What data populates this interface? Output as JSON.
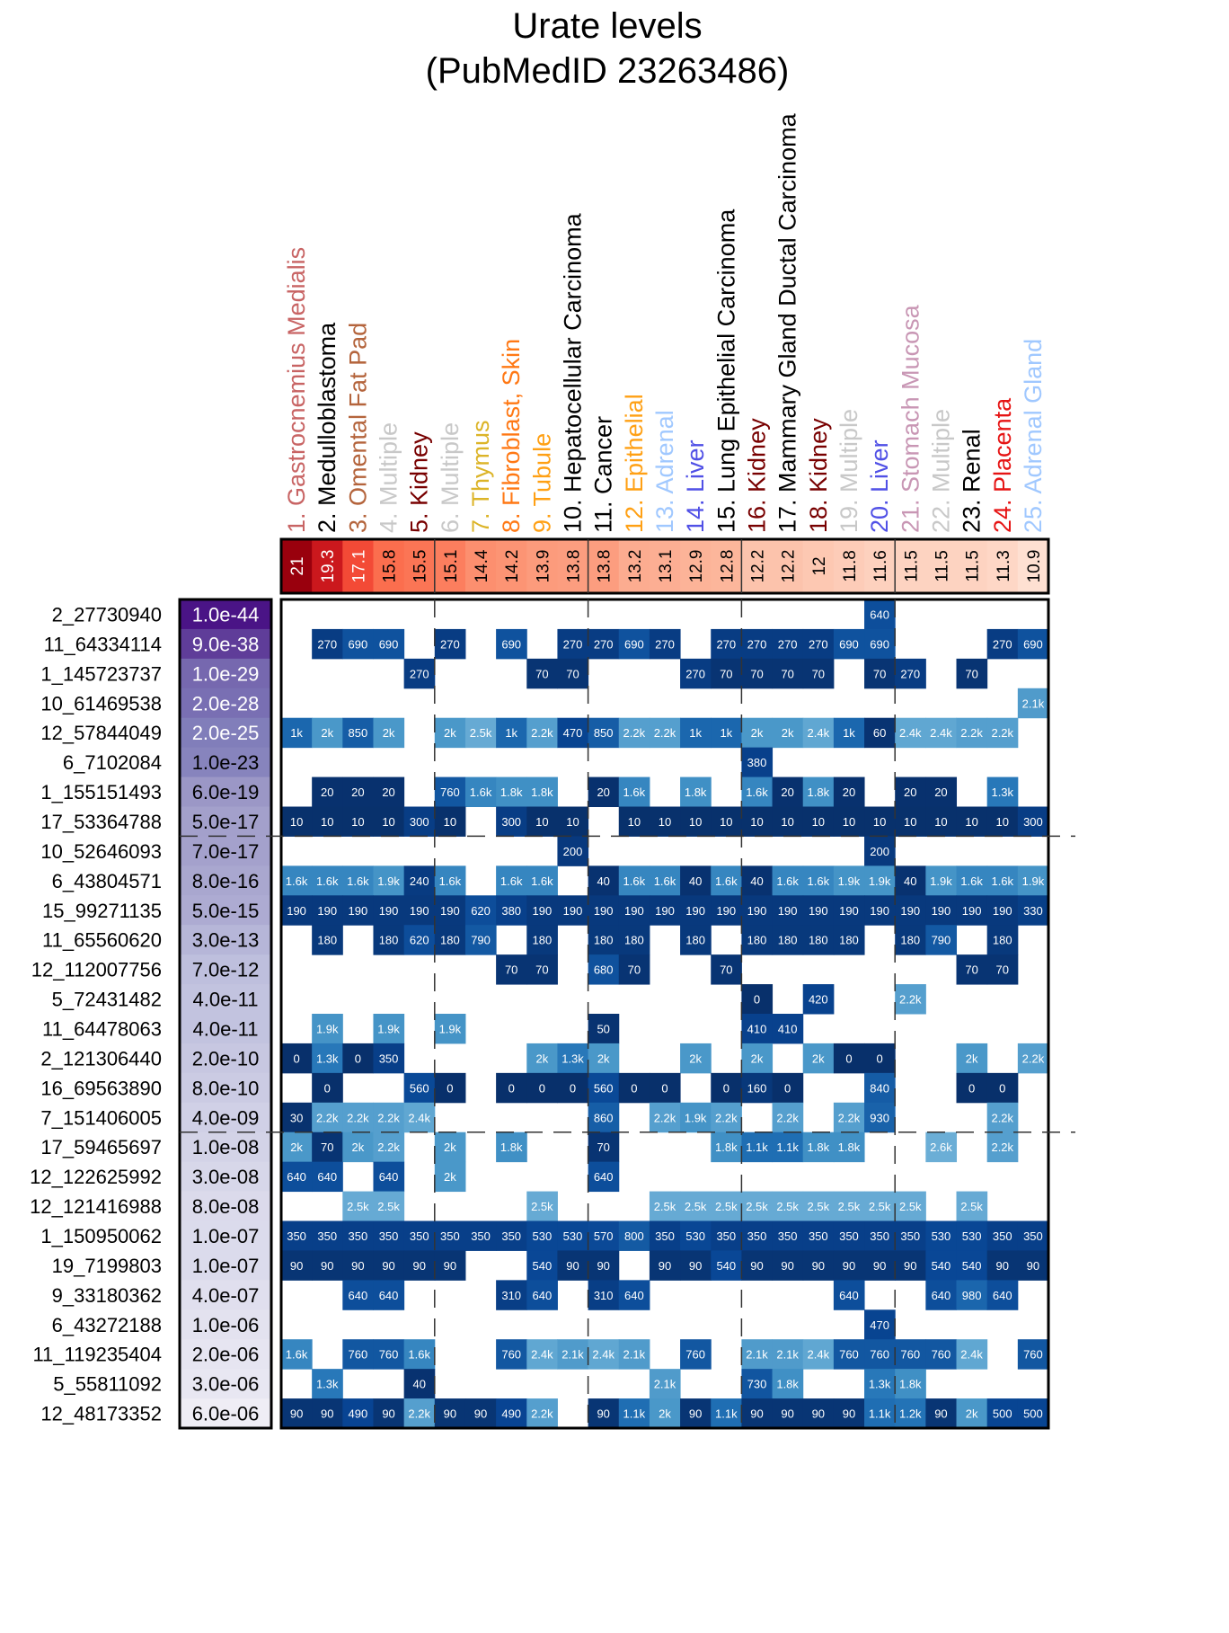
{
  "chart_data": {
    "type": "heatmap",
    "title": "Urate levels",
    "subtitle": "(PubMedID 23263486)",
    "xlabel": "",
    "ylabel": "",
    "columns": [
      {
        "label": "1. Gastrocnemius Medialis",
        "color": "#c86464",
        "score": "21"
      },
      {
        "label": "2. Medulloblastoma",
        "color": "#000000",
        "score": "19.3"
      },
      {
        "label": "3. Omental Fat Pad",
        "color": "#b4643c",
        "score": "17.1"
      },
      {
        "label": "4. Multiple",
        "color": "#c8c8c8",
        "score": "15.8"
      },
      {
        "label": "5. Kidney",
        "color": "#780000",
        "score": "15.5"
      },
      {
        "label": "6. Multiple",
        "color": "#c8c8c8",
        "score": "15.1"
      },
      {
        "label": "7. Thymus",
        "color": "#dcb428",
        "score": "14.4"
      },
      {
        "label": "8. Fibroblast, Skin",
        "color": "#ff7814",
        "score": "14.2"
      },
      {
        "label": "9. Tubule",
        "color": "#ffa014",
        "score": "13.9"
      },
      {
        "label": "10. Hepatocellular Carcinoma",
        "color": "#000000",
        "score": "13.8"
      },
      {
        "label": "11. Cancer",
        "color": "#000000",
        "score": "13.8"
      },
      {
        "label": "12. Epithelial",
        "color": "#ffa014",
        "score": "13.2"
      },
      {
        "label": "13. Adrenal",
        "color": "#a0c8ff",
        "score": "13.1"
      },
      {
        "label": "14. Liver",
        "color": "#5050e6",
        "score": "12.9"
      },
      {
        "label": "15. Lung Epithelial Carcinoma",
        "color": "#000000",
        "score": "12.8"
      },
      {
        "label": "16. Kidney",
        "color": "#780000",
        "score": "12.2"
      },
      {
        "label": "17. Mammary Gland Ductal Carcinoma",
        "color": "#000000",
        "score": "12.2"
      },
      {
        "label": "18. Kidney",
        "color": "#780000",
        "score": "12"
      },
      {
        "label": "19. Multiple",
        "color": "#c8c8c8",
        "score": "11.8"
      },
      {
        "label": "20. Liver",
        "color": "#5050e6",
        "score": "11.6"
      },
      {
        "label": "21. Stomach Mucosa",
        "color": "#c896b4",
        "score": "11.5"
      },
      {
        "label": "22. Multiple",
        "color": "#c8c8c8",
        "score": "11.5"
      },
      {
        "label": "23. Renal",
        "color": "#000000",
        "score": "11.5"
      },
      {
        "label": "24. Placenta",
        "color": "#e61414",
        "score": "11.3"
      },
      {
        "label": "25. Adrenal Gland",
        "color": "#a0c8ff",
        "score": "10.9"
      }
    ],
    "score_range": [
      10.9,
      21
    ],
    "rows": [
      {
        "snp": "2_27730940",
        "pvalue": "1.0e-44"
      },
      {
        "snp": "11_64334114",
        "pvalue": "9.0e-38"
      },
      {
        "snp": "1_145723737",
        "pvalue": "1.0e-29"
      },
      {
        "snp": "10_61469538",
        "pvalue": "2.0e-28"
      },
      {
        "snp": "12_57844049",
        "pvalue": "2.0e-25"
      },
      {
        "snp": "6_7102084",
        "pvalue": "1.0e-23"
      },
      {
        "snp": "1_155151493",
        "pvalue": "6.0e-19"
      },
      {
        "snp": "17_53364788",
        "pvalue": "5.0e-17"
      },
      {
        "snp": "10_52646093",
        "pvalue": "7.0e-17"
      },
      {
        "snp": "6_43804571",
        "pvalue": "8.0e-16"
      },
      {
        "snp": "15_99271135",
        "pvalue": "5.0e-15"
      },
      {
        "snp": "11_65560620",
        "pvalue": "3.0e-13"
      },
      {
        "snp": "12_112007756",
        "pvalue": "7.0e-12"
      },
      {
        "snp": "5_72431482",
        "pvalue": "4.0e-11"
      },
      {
        "snp": "11_64478063",
        "pvalue": "4.0e-11"
      },
      {
        "snp": "2_121306440",
        "pvalue": "2.0e-10"
      },
      {
        "snp": "16_69563890",
        "pvalue": "8.0e-10"
      },
      {
        "snp": "7_151406005",
        "pvalue": "4.0e-09"
      },
      {
        "snp": "17_59465697",
        "pvalue": "1.0e-08"
      },
      {
        "snp": "12_122625992",
        "pvalue": "3.0e-08"
      },
      {
        "snp": "12_121416988",
        "pvalue": "8.0e-08"
      },
      {
        "snp": "1_150950062",
        "pvalue": "1.0e-07"
      },
      {
        "snp": "19_7199803",
        "pvalue": "1.0e-07"
      },
      {
        "snp": "9_33180362",
        "pvalue": "4.0e-07"
      },
      {
        "snp": "6_43272188",
        "pvalue": "1.0e-06"
      },
      {
        "snp": "11_119235404",
        "pvalue": "2.0e-06"
      },
      {
        "snp": "5_55811092",
        "pvalue": "3.0e-06"
      },
      {
        "snp": "12_48173352",
        "pvalue": "6.0e-06"
      }
    ],
    "cells": [
      [
        "",
        "",
        "",
        "",
        "",
        "",
        "",
        "",
        "",
        "",
        "",
        "",
        "",
        "",
        "",
        "",
        "",
        "",
        "",
        "640",
        "",
        "",
        "",
        "",
        ""
      ],
      [
        "",
        "270",
        "690",
        "690",
        "",
        "270",
        "",
        "690",
        "",
        "270",
        "270",
        "690",
        "270",
        "",
        "270",
        "270",
        "270",
        "270",
        "690",
        "690",
        "",
        "",
        "",
        "270",
        "690"
      ],
      [
        "",
        "",
        "",
        "",
        "270",
        "",
        "",
        "",
        "70",
        "70",
        "",
        "",
        "",
        "270",
        "70",
        "70",
        "70",
        "70",
        "",
        "70",
        "270",
        "",
        "70",
        "",
        ""
      ],
      [
        "",
        "",
        "",
        "",
        "",
        "",
        "",
        "",
        "",
        "",
        "",
        "",
        "",
        "",
        "",
        "",
        "",
        "",
        "",
        "",
        "",
        "",
        "",
        "",
        "2.1k"
      ],
      [
        "1k",
        "2k",
        "850",
        "2k",
        "",
        "2k",
        "2.5k",
        "1k",
        "2.2k",
        "470",
        "850",
        "2.2k",
        "2.2k",
        "1k",
        "1k",
        "2k",
        "2k",
        "2.4k",
        "1k",
        "60",
        "2.4k",
        "2.4k",
        "2.2k",
        "2.2k",
        ""
      ],
      [
        "",
        "",
        "",
        "",
        "",
        "",
        "",
        "",
        "",
        "",
        "",
        "",
        "",
        "",
        "",
        "380",
        "",
        "",
        "",
        "",
        "",
        "",
        "",
        "",
        ""
      ],
      [
        "",
        "20",
        "20",
        "20",
        "",
        "760",
        "1.6k",
        "1.8k",
        "1.8k",
        "",
        "20",
        "1.6k",
        "",
        "1.8k",
        "",
        "1.6k",
        "20",
        "1.8k",
        "20",
        "",
        "20",
        "20",
        "",
        "1.3k",
        ""
      ],
      [
        "10",
        "10",
        "10",
        "10",
        "300",
        "10",
        "",
        "300",
        "10",
        "10",
        "",
        "10",
        "10",
        "10",
        "10",
        "10",
        "10",
        "10",
        "10",
        "10",
        "10",
        "10",
        "10",
        "10",
        "300"
      ],
      [
        "",
        "",
        "",
        "",
        "",
        "",
        "",
        "",
        "",
        "200",
        "",
        "",
        "",
        "",
        "",
        "",
        "",
        "",
        "",
        "200",
        "",
        "",
        "",
        "",
        ""
      ],
      [
        "1.6k",
        "1.6k",
        "1.6k",
        "1.9k",
        "240",
        "1.6k",
        "",
        "1.6k",
        "1.6k",
        "",
        "40",
        "1.6k",
        "1.6k",
        "40",
        "1.6k",
        "40",
        "1.6k",
        "1.6k",
        "1.9k",
        "1.9k",
        "40",
        "1.9k",
        "1.6k",
        "1.6k",
        "1.9k"
      ],
      [
        "190",
        "190",
        "190",
        "190",
        "190",
        "190",
        "620",
        "380",
        "190",
        "190",
        "190",
        "190",
        "190",
        "190",
        "190",
        "190",
        "190",
        "190",
        "190",
        "190",
        "190",
        "190",
        "190",
        "190",
        "330"
      ],
      [
        "",
        "180",
        "",
        "180",
        "620",
        "180",
        "790",
        "",
        "180",
        "",
        "180",
        "180",
        "",
        "180",
        "",
        "180",
        "180",
        "180",
        "180",
        "",
        "180",
        "790",
        "",
        "180",
        ""
      ],
      [
        "",
        "",
        "",
        "",
        "",
        "",
        "",
        "70",
        "70",
        "",
        "680",
        "70",
        "",
        "",
        "70",
        "",
        "",
        "",
        "",
        "",
        "",
        "",
        "70",
        "70",
        ""
      ],
      [
        "",
        "",
        "",
        "",
        "",
        "",
        "",
        "",
        "",
        "",
        "",
        "",
        "",
        "",
        "",
        "0",
        "",
        "420",
        "",
        "",
        "2.2k",
        "",
        "",
        "",
        ""
      ],
      [
        "",
        "1.9k",
        "",
        "1.9k",
        "",
        "1.9k",
        "",
        "",
        "",
        "",
        "50",
        "",
        "",
        "",
        "",
        "410",
        "410",
        "",
        "",
        "",
        "",
        "",
        "",
        "",
        ""
      ],
      [
        "0",
        "1.3k",
        "0",
        "350",
        "",
        "",
        "",
        "",
        "2k",
        "1.3k",
        "2k",
        "",
        "",
        "2k",
        "",
        "2k",
        "",
        "2k",
        "0",
        "0",
        "",
        "",
        "2k",
        "",
        "2.2k"
      ],
      [
        "",
        "0",
        "",
        "",
        "560",
        "0",
        "",
        "0",
        "0",
        "0",
        "560",
        "0",
        "0",
        "",
        "0",
        "160",
        "0",
        "",
        "",
        "840",
        "",
        "",
        "0",
        "0",
        ""
      ],
      [
        "30",
        "2.2k",
        "2.2k",
        "2.2k",
        "2.4k",
        "",
        "",
        "",
        "",
        "",
        "860",
        "",
        "2.2k",
        "1.9k",
        "2.2k",
        "",
        "2.2k",
        "",
        "2.2k",
        "930",
        "",
        "",
        "",
        "2.2k",
        ""
      ],
      [
        "2k",
        "70",
        "2k",
        "2.2k",
        "",
        "2k",
        "",
        "1.8k",
        "",
        "",
        "70",
        "",
        "",
        "",
        "1.8k",
        "1.1k",
        "1.1k",
        "1.8k",
        "1.8k",
        "",
        "",
        "2.6k",
        "",
        "2.2k",
        ""
      ],
      [
        "640",
        "640",
        "",
        "640",
        "",
        "2k",
        "",
        "",
        "",
        "",
        "640",
        "",
        "",
        "",
        "",
        "",
        "",
        "",
        "",
        "",
        "",
        "",
        "",
        "",
        ""
      ],
      [
        "",
        "",
        "2.5k",
        "2.5k",
        "",
        "",
        "",
        "",
        "2.5k",
        "",
        "",
        "",
        "2.5k",
        "2.5k",
        "2.5k",
        "2.5k",
        "2.5k",
        "2.5k",
        "2.5k",
        "2.5k",
        "2.5k",
        "",
        "2.5k",
        "",
        ""
      ],
      [
        "350",
        "350",
        "350",
        "350",
        "350",
        "350",
        "350",
        "350",
        "530",
        "530",
        "570",
        "800",
        "350",
        "530",
        "350",
        "350",
        "350",
        "350",
        "350",
        "350",
        "350",
        "530",
        "530",
        "350",
        "350"
      ],
      [
        "90",
        "90",
        "90",
        "90",
        "90",
        "90",
        "",
        "",
        "540",
        "90",
        "90",
        "",
        "90",
        "90",
        "540",
        "90",
        "90",
        "90",
        "90",
        "90",
        "90",
        "540",
        "540",
        "90",
        "90"
      ],
      [
        "",
        "",
        "640",
        "640",
        "",
        "",
        "",
        "310",
        "640",
        "",
        "310",
        "640",
        "",
        "",
        "",
        "",
        "",
        "",
        "640",
        "",
        "",
        "640",
        "980",
        "640",
        ""
      ],
      [
        "",
        "",
        "",
        "",
        "",
        "",
        "",
        "",
        "",
        "",
        "",
        "",
        "",
        "",
        "",
        "",
        "",
        "",
        "",
        "470",
        "",
        "",
        "",
        "",
        ""
      ],
      [
        "1.6k",
        "",
        "760",
        "760",
        "1.6k",
        "",
        "",
        "760",
        "2.4k",
        "2.1k",
        "2.4k",
        "2.1k",
        "",
        "760",
        "",
        "2.1k",
        "2.1k",
        "2.4k",
        "760",
        "760",
        "760",
        "760",
        "2.4k",
        "",
        "760"
      ],
      [
        "",
        "1.3k",
        "",
        "",
        "40",
        "",
        "",
        "",
        "",
        "",
        "",
        "",
        "2.1k",
        "",
        "",
        "730",
        "1.8k",
        "",
        "",
        "1.3k",
        "1.8k",
        "",
        "",
        "",
        ""
      ],
      [
        "90",
        "90",
        "490",
        "90",
        "2.2k",
        "90",
        "90",
        "490",
        "2.2k",
        "",
        "90",
        "1.1k",
        "2k",
        "90",
        "1.1k",
        "90",
        "90",
        "90",
        "90",
        "1.1k",
        "1.2k",
        "90",
        "2k",
        "500",
        "500"
      ]
    ],
    "column_group_separators_after": [
      5,
      10,
      15,
      20
    ],
    "row_group_separators_after": [
      8,
      18
    ],
    "cell_color_scale": "blues (darker = smaller value)",
    "score_color_scale": "reds (darker = higher score)",
    "pvalue_color_scale": "purples (darker = more significant)",
    "grid": false,
    "legend": "none"
  }
}
